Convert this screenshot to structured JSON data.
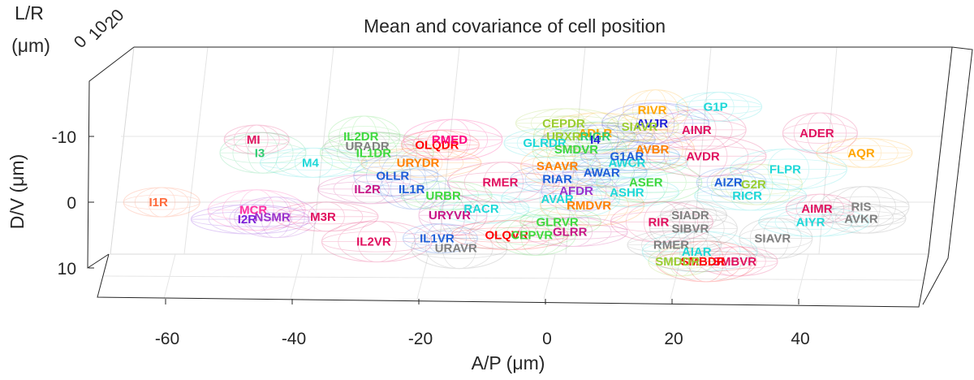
{
  "chart_data": {
    "type": "scatter",
    "title": "Mean and covariance of cell position",
    "xlabel": "A/P (μm)",
    "ylabel": "D/V (μm)",
    "zlabel_line1": "L/R",
    "zlabel_line2": "(μm)",
    "x_ticks": [
      "-60",
      "-40",
      "-20",
      "0",
      "20",
      "40"
    ],
    "y_ticks": [
      "-10",
      "0",
      "10"
    ],
    "z_ticks": [
      "0",
      "10",
      "20"
    ],
    "xlim": [
      -75,
      55
    ],
    "ylim": [
      -20,
      15
    ],
    "grid": true,
    "cells": [
      {
        "name": "MI",
        "x": -51,
        "y": -9.5,
        "color": "#e0115f"
      },
      {
        "name": "I3",
        "x": -50,
        "y": -7.5,
        "color": "#2ecc71"
      },
      {
        "name": "M4",
        "x": -42,
        "y": -6,
        "color": "#1fd8d8"
      },
      {
        "name": "IL2DR",
        "x": -34,
        "y": -10,
        "color": "#3fd83f"
      },
      {
        "name": "URADR",
        "x": -33,
        "y": -8.5,
        "color": "#808080"
      },
      {
        "name": "IL1DR",
        "x": -32,
        "y": -7.5,
        "color": "#3fd83f"
      },
      {
        "name": "OLQDR",
        "x": -22,
        "y": -8.7,
        "color": "#ff0000"
      },
      {
        "name": "RMED",
        "x": -20,
        "y": -9.5,
        "color": "#ff0080"
      },
      {
        "name": "URYDR",
        "x": -25,
        "y": -6,
        "color": "#ff7f00"
      },
      {
        "name": "OLLR",
        "x": -29,
        "y": -4,
        "color": "#1f5fd8"
      },
      {
        "name": "IL2R",
        "x": -33,
        "y": -2,
        "color": "#c71585"
      },
      {
        "name": "IL1R",
        "x": -26,
        "y": -2,
        "color": "#1f5fd8"
      },
      {
        "name": "URBR",
        "x": -21,
        "y": -1,
        "color": "#3fd83f"
      },
      {
        "name": "RMER",
        "x": -12,
        "y": -3,
        "color": "#e0115f"
      },
      {
        "name": "I1R",
        "x": -66,
        "y": 0,
        "color": "#ff6a3a"
      },
      {
        "name": "MCR",
        "x": -51,
        "y": 1.2,
        "color": "#ff2fa0"
      },
      {
        "name": "I2R",
        "x": -52,
        "y": 2.6,
        "color": "#7a1fd8"
      },
      {
        "name": "NSMR",
        "x": -48,
        "y": 2.3,
        "color": "#9932cc"
      },
      {
        "name": "M3R",
        "x": -40,
        "y": 2.2,
        "color": "#e0115f"
      },
      {
        "name": "URYVR",
        "x": -20,
        "y": 2,
        "color": "#c71585"
      },
      {
        "name": "RACR",
        "x": -15,
        "y": 1,
        "color": "#1fd8d8"
      },
      {
        "name": "IL2VR",
        "x": -32,
        "y": 6,
        "color": "#e0115f"
      },
      {
        "name": "IL1VR",
        "x": -22,
        "y": 5.5,
        "color": "#1f5fd8"
      },
      {
        "name": "URAVR",
        "x": -19,
        "y": 7,
        "color": "#808080"
      },
      {
        "name": "OLQVR",
        "x": -11,
        "y": 5,
        "color": "#ff0000"
      },
      {
        "name": "CEPVR",
        "x": -7,
        "y": 5,
        "color": "#3fd83f"
      },
      {
        "name": "CEPDR",
        "x": -2,
        "y": -12,
        "color": "#9acd32"
      },
      {
        "name": "URXR",
        "x": -2,
        "y": -10,
        "color": "#9acd32"
      },
      {
        "name": "GLRDR",
        "x": -5,
        "y": -9,
        "color": "#1fd8d8"
      },
      {
        "name": "ADLR",
        "x": 3,
        "y": -10.5,
        "color": "#ffa500"
      },
      {
        "name": "RIGR",
        "x": 3,
        "y": -10,
        "color": "#2ecc71"
      },
      {
        "name": "SMDVR",
        "x": 0,
        "y": -8,
        "color": "#3fd83f"
      },
      {
        "name": "AWCR",
        "x": 8,
        "y": -6,
        "color": "#1fd8d8"
      },
      {
        "name": "SAAVR",
        "x": -3,
        "y": -5.5,
        "color": "#ff7f00"
      },
      {
        "name": "RIAR",
        "x": -3,
        "y": -3.5,
        "color": "#1f5fd8"
      },
      {
        "name": "RIVR",
        "x": 12,
        "y": -14,
        "color": "#ffa500"
      },
      {
        "name": "G1P",
        "x": 22,
        "y": -14.5,
        "color": "#1fd8d8"
      },
      {
        "name": "AVJR",
        "x": 12,
        "y": -12,
        "color": "#1f1fd8"
      },
      {
        "name": "SIAVR",
        "x": 10,
        "y": -11.5,
        "color": "#9acd32"
      },
      {
        "name": "AINR",
        "x": 19,
        "y": -11,
        "color": "#e0115f"
      },
      {
        "name": "I4",
        "x": 3,
        "y": -9.5,
        "color": "#1f1fd8"
      },
      {
        "name": "AVBR",
        "x": 12,
        "y": -8,
        "color": "#ff7f00"
      },
      {
        "name": "G1AR",
        "x": 8,
        "y": -7,
        "color": "#1f5fd8"
      },
      {
        "name": "AVDR",
        "x": 20,
        "y": -7,
        "color": "#e0115f"
      },
      {
        "name": "AWAR",
        "x": 4,
        "y": -4.5,
        "color": "#1f5fd8"
      },
      {
        "name": "ASER",
        "x": 11,
        "y": -3,
        "color": "#3fd83f"
      },
      {
        "name": "AIZR",
        "x": 24,
        "y": -3,
        "color": "#1f5fd8"
      },
      {
        "name": "G2R",
        "x": 28,
        "y": -2.7,
        "color": "#9acd32"
      },
      {
        "name": "RICR",
        "x": 27,
        "y": -1,
        "color": "#1fd8d8"
      },
      {
        "name": "AFDR",
        "x": 0,
        "y": -1.7,
        "color": "#9932cc"
      },
      {
        "name": "ASHR",
        "x": 8,
        "y": -1.5,
        "color": "#1fd8d8"
      },
      {
        "name": "AVAR",
        "x": -3,
        "y": -0.5,
        "color": "#1fd8d8"
      },
      {
        "name": "AVKR",
        "x": 45,
        "y": 2.5,
        "color": "#808080"
      },
      {
        "name": "RMDVR",
        "x": 2,
        "y": 0.5,
        "color": "#ff7f00"
      },
      {
        "name": "AIMR",
        "x": 38,
        "y": 1,
        "color": "#e0115f"
      },
      {
        "name": "RIS",
        "x": 45,
        "y": 0.7,
        "color": "#808080"
      },
      {
        "name": "AIYR",
        "x": 37,
        "y": 3,
        "color": "#1fd8d8"
      },
      {
        "name": "ADER",
        "x": 38,
        "y": -10.5,
        "color": "#e0115f"
      },
      {
        "name": "AQR",
        "x": 45,
        "y": -7.5,
        "color": "#ffa500"
      },
      {
        "name": "FLPR",
        "x": 33,
        "y": -5,
        "color": "#1fd8d8"
      },
      {
        "name": "GLRVR",
        "x": -3,
        "y": 3,
        "color": "#3fd83f"
      },
      {
        "name": "RIR",
        "x": 13,
        "y": 3,
        "color": "#e0115f"
      },
      {
        "name": "SIADR",
        "x": 18,
        "y": 2,
        "color": "#808080"
      },
      {
        "name": "SIBVR",
        "x": 18,
        "y": 4,
        "color": "#808080"
      },
      {
        "name": "GLRR",
        "x": -1,
        "y": 4.5,
        "color": "#c71585"
      },
      {
        "name": "SIAVR",
        "x": 31,
        "y": 5.5,
        "color": "#808080"
      },
      {
        "name": "RMER",
        "x": 15,
        "y": 6.5,
        "color": "#808080"
      },
      {
        "name": "AIAR",
        "x": 19,
        "y": 7.5,
        "color": "#1fd8d8"
      },
      {
        "name": "SMBVR",
        "x": 25,
        "y": 9,
        "color": "#e0115f"
      },
      {
        "name": "SMBDR",
        "x": 20,
        "y": 9,
        "color": "#ff0000"
      },
      {
        "name": "SMDDR",
        "x": 16,
        "y": 9,
        "color": "#9acd32"
      }
    ]
  }
}
